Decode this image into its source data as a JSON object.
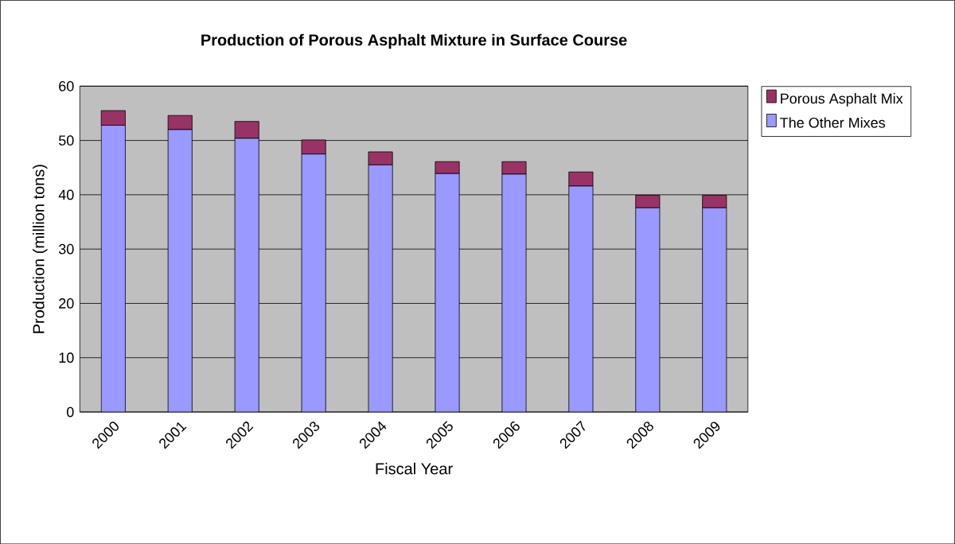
{
  "chart_data": {
    "type": "bar",
    "stacked": true,
    "title": "Production of Porous Asphalt Mixture in Surface Course",
    "xlabel": "Fiscal Year",
    "ylabel": "Production (million tons)",
    "categories": [
      "2000",
      "2001",
      "2002",
      "2003",
      "2004",
      "2005",
      "2006",
      "2007",
      "2008",
      "2009"
    ],
    "series": [
      {
        "name": "The Other Mixes",
        "color": "#9999ff",
        "values": [
          52.8,
          52.0,
          50.4,
          47.5,
          45.5,
          43.9,
          43.8,
          41.6,
          37.6,
          37.6
        ]
      },
      {
        "name": "Porous Asphalt Mix",
        "color": "#993366",
        "values": [
          2.7,
          2.6,
          3.1,
          2.6,
          2.4,
          2.2,
          2.3,
          2.6,
          2.3,
          2.3
        ]
      }
    ],
    "ylim": [
      0,
      60
    ],
    "yticks": [
      0,
      10,
      20,
      30,
      40,
      50,
      60
    ],
    "grid": "y",
    "legend": "right"
  }
}
